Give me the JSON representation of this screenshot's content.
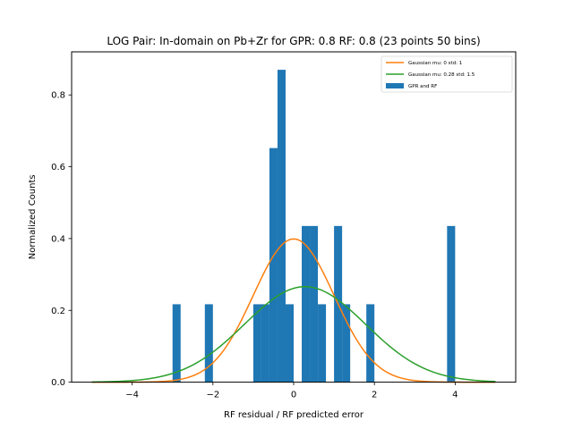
{
  "chart_data": {
    "type": "bar",
    "title": "LOG Pair: In-domain on Pb+Zr for GPR: 0.8 RF: 0.8 (23 points 50 bins)",
    "xlabel": "RF residual / RF predicted error",
    "ylabel": "Normalized Counts",
    "xlim": [
      -5.5,
      5.5
    ],
    "ylim": [
      0,
      0.92
    ],
    "xticks": [
      -4,
      -2,
      0,
      2,
      4
    ],
    "xtick_labels": [
      "−4",
      "−2",
      "0",
      "2",
      "4"
    ],
    "yticks": [
      0.0,
      0.2,
      0.4,
      0.6,
      0.8
    ],
    "ytick_labels": [
      "0.0",
      "0.2",
      "0.4",
      "0.6",
      "0.8"
    ],
    "grid": false,
    "legend_position": "top-right",
    "histogram": {
      "name": "GPR and RF",
      "color": "#1f77b4",
      "bin_width": 0.2,
      "bins": [
        {
          "left": -3.0,
          "value": 0.217
        },
        {
          "left": -2.2,
          "value": 0.217
        },
        {
          "left": -1.0,
          "value": 0.217
        },
        {
          "left": -0.8,
          "value": 0.217
        },
        {
          "left": -0.6,
          "value": 0.652
        },
        {
          "left": -0.4,
          "value": 0.87
        },
        {
          "left": -0.2,
          "value": 0.217
        },
        {
          "left": 0.2,
          "value": 0.435
        },
        {
          "left": 0.4,
          "value": 0.435
        },
        {
          "left": 0.6,
          "value": 0.217
        },
        {
          "left": 1.0,
          "value": 0.435
        },
        {
          "left": 1.2,
          "value": 0.217
        },
        {
          "left": 1.8,
          "value": 0.217
        },
        {
          "left": 3.8,
          "value": 0.435
        }
      ]
    },
    "curves": [
      {
        "name": "Gaussian mu: 0 std: 1",
        "mu": 0,
        "std": 1,
        "color": "#ff7f0e",
        "x_range": [
          -5,
          5
        ]
      },
      {
        "name": "Gaussian mu: 0.28 std: 1.5",
        "mu": 0.28,
        "std": 1.5,
        "color": "#2ca02c",
        "x_range": [
          -5,
          5
        ]
      }
    ],
    "legend": [
      {
        "label": "Gaussian mu: 0 std: 1",
        "kind": "line",
        "color": "#ff7f0e"
      },
      {
        "label": "Gaussian mu: 0.28 std: 1.5",
        "kind": "line",
        "color": "#2ca02c"
      },
      {
        "label": "GPR and RF",
        "kind": "patch",
        "color": "#1f77b4"
      }
    ]
  }
}
